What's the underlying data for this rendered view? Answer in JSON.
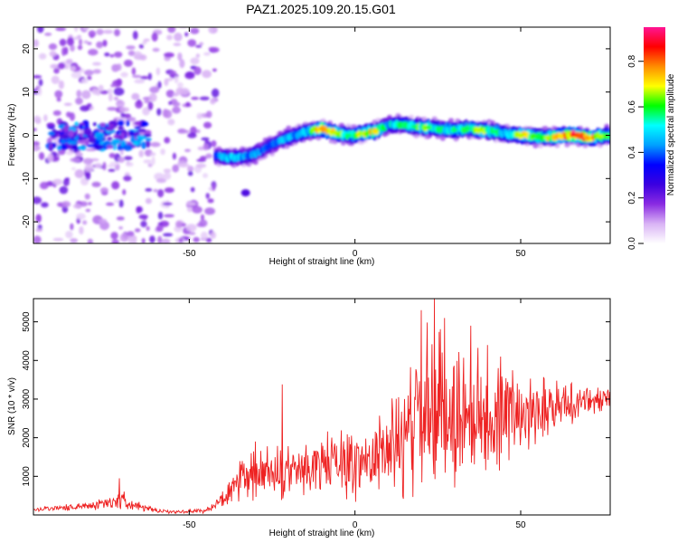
{
  "figure": {
    "title": "PAZ1.2025.109.20.15.G01"
  },
  "colorbar": {
    "label": "Normalized spectral amplitude",
    "ticks": [
      "0.0",
      "0.2",
      "0.4",
      "0.6",
      "0.8"
    ],
    "range": [
      0,
      0.95
    ],
    "colormap": [
      "#ffffff",
      "#d9b3f5",
      "#8a2be2",
      "#3b00e0",
      "#0000ff",
      "#00a0ff",
      "#00ffff",
      "#00ff00",
      "#ffff00",
      "#ff8c00",
      "#ff0000",
      "#ff1493"
    ]
  },
  "chart_data": [
    {
      "type": "heatmap",
      "title": "PAZ1.2025.109.20.15.G01",
      "xlabel": "Height of straight line (km)",
      "ylabel": "Frequency (Hz)",
      "xlim": [
        -97,
        77
      ],
      "ylim": [
        -25,
        25
      ],
      "xticks": [
        -50,
        0,
        50
      ],
      "yticks": [
        -20,
        -10,
        0,
        10,
        20
      ],
      "ridge": {
        "x": [
          -42,
          -38,
          -34,
          -30,
          -26,
          -22,
          -18,
          -14,
          -10,
          -6,
          -2,
          2,
          6,
          10,
          14,
          18,
          22,
          26,
          30,
          34,
          38,
          42,
          46,
          50,
          54,
          58,
          62,
          66,
          70,
          74,
          77
        ],
        "y": [
          -4.8,
          -5.2,
          -5.0,
          -4.2,
          -2.5,
          -1.0,
          0.0,
          1.0,
          1.6,
          0.5,
          0.0,
          0.4,
          0.9,
          2.4,
          2.6,
          2.0,
          1.8,
          1.4,
          1.2,
          1.6,
          1.1,
          0.9,
          0.3,
          0.0,
          -0.2,
          -0.5,
          -0.2,
          0.1,
          -0.6,
          -0.2,
          0.0
        ],
        "amplitude": [
          0.4,
          0.5,
          0.45,
          0.45,
          0.4,
          0.45,
          0.5,
          0.55,
          0.8,
          0.7,
          0.6,
          0.7,
          0.75,
          0.5,
          0.55,
          0.6,
          0.65,
          0.55,
          0.6,
          0.6,
          0.7,
          0.6,
          0.55,
          0.7,
          0.65,
          0.7,
          0.75,
          0.9,
          0.8,
          0.7,
          0.6
        ]
      },
      "noise_region": {
        "x": [
          -97,
          -42
        ],
        "y": [
          -25,
          25
        ]
      },
      "noise_cluster": {
        "x": [
          -92,
          -62
        ],
        "y": [
          -3,
          3
        ],
        "amplitude": 0.35
      },
      "isolated_blob": {
        "x": -33,
        "y": -13.3,
        "amplitude": 0.25
      }
    },
    {
      "type": "line",
      "xlabel": "Height of straight line (km)",
      "ylabel": "SNR (10 * v/v)",
      "xlim": [
        -97,
        77
      ],
      "ylim": [
        0,
        5600
      ],
      "xticks": [
        -50,
        0,
        50
      ],
      "yticks": [
        1000,
        2000,
        3000,
        4000,
        5000
      ],
      "color": "#ee2222",
      "envelope": {
        "x": [
          -97,
          -85,
          -75,
          -70,
          -66,
          -60,
          -55,
          -50,
          -45,
          -42,
          -40,
          -36,
          -34,
          -30,
          -27,
          -24,
          -22,
          -20,
          -15,
          -10,
          -5,
          0,
          5,
          10,
          15,
          18,
          20,
          22,
          24,
          26,
          30,
          35,
          40,
          45,
          50,
          55,
          60,
          65,
          70,
          77
        ],
        "mean": [
          150,
          200,
          300,
          400,
          250,
          100,
          80,
          90,
          120,
          250,
          400,
          700,
          900,
          1000,
          1100,
          1000,
          1000,
          1100,
          1200,
          1300,
          1400,
          1300,
          1500,
          1700,
          2000,
          2300,
          2400,
          2500,
          2600,
          2600,
          2600,
          2550,
          2500,
          2600,
          2700,
          2800,
          2850,
          2900,
          2950,
          3000
        ],
        "amp": [
          80,
          100,
          180,
          300,
          150,
          60,
          50,
          60,
          80,
          150,
          300,
          500,
          700,
          900,
          800,
          800,
          1000,
          800,
          900,
          1000,
          1000,
          1100,
          1200,
          1400,
          1800,
          2300,
          2600,
          2700,
          2800,
          2600,
          2300,
          2000,
          1800,
          1600,
          1300,
          1100,
          900,
          700,
          500,
          400
        ]
      },
      "peaks": [
        {
          "x": -71,
          "y": 950
        },
        {
          "x": -30,
          "y": 1900
        },
        {
          "x": -22,
          "y": 3380
        },
        {
          "x": 20,
          "y": 5300
        },
        {
          "x": 24,
          "y": 5600
        },
        {
          "x": 27,
          "y": 5100
        },
        {
          "x": 35,
          "y": 4900
        },
        {
          "x": 40,
          "y": 4400
        },
        {
          "x": 44,
          "y": 4100
        }
      ]
    }
  ]
}
